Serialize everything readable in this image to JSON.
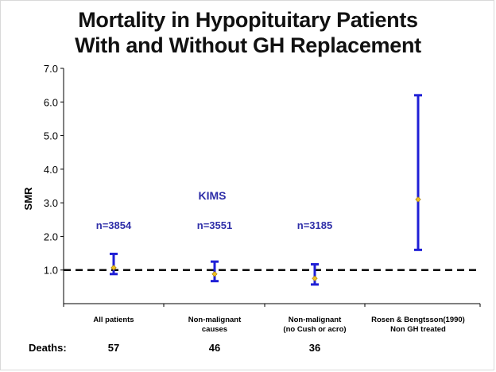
{
  "chart_data": {
    "type": "errorbar",
    "title_lines": [
      "Mortality in Hypopituitary Patients",
      "With and Without GH Replacement"
    ],
    "ylabel": "SMR",
    "ylim": [
      0,
      7
    ],
    "yticks": [
      "7.0",
      "6.0",
      "5.0",
      "4.0",
      "3.0",
      "2.0",
      "1.0"
    ],
    "reference_line": 1.0,
    "categories": [
      {
        "lines": [
          "All patients"
        ],
        "value": 1.07,
        "lower": 0.88,
        "upper": 1.48,
        "n_label": "n=3854",
        "deaths": "57"
      },
      {
        "lines": [
          "Non-malignant",
          "causes"
        ],
        "value": 0.88,
        "lower": 0.67,
        "upper": 1.25,
        "n_label": "n=3551",
        "deaths": "46"
      },
      {
        "lines": [
          "Non-malignant",
          "(no Cush or acro)"
        ],
        "value": 0.75,
        "lower": 0.57,
        "upper": 1.17,
        "n_label": "n=3185",
        "deaths": "36"
      },
      {
        "lines": [
          "Rosen & Bengtsson(1990)",
          "Non GH treated"
        ],
        "value": 3.1,
        "lower": 1.6,
        "upper": 6.2,
        "n_label": "",
        "deaths": ""
      }
    ],
    "group_label": "KIMS",
    "deaths_label": "Deaths:",
    "colors": {
      "bar": "#1f1fd6",
      "marker": "#f0c020",
      "label": "#2e2ea8",
      "axis": "#000000"
    },
    "grid": false
  }
}
